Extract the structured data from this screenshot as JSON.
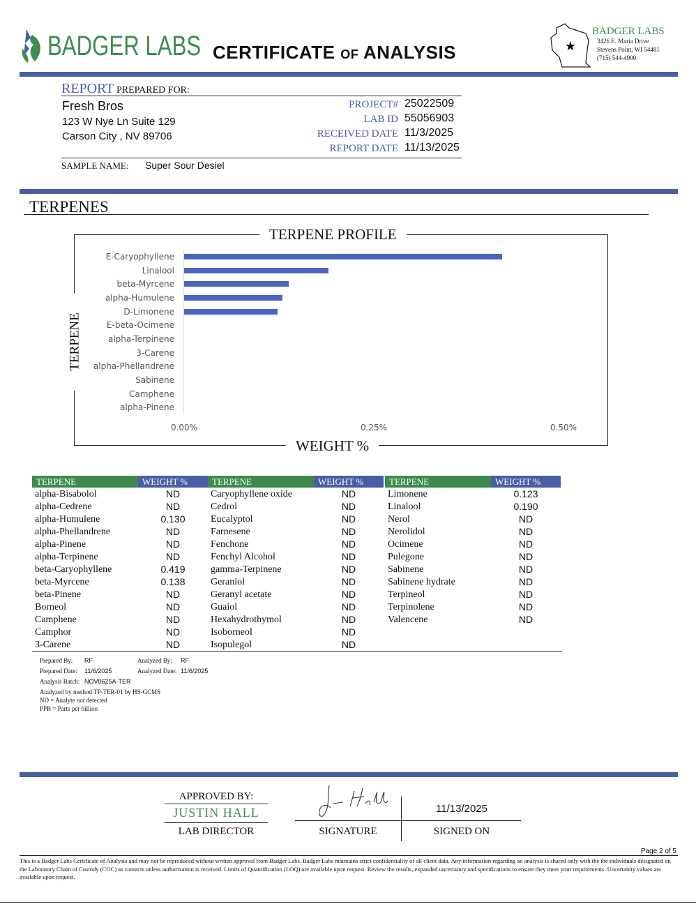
{
  "header": {
    "logo_text": "BADGER LABS",
    "title_main1": "CERTIFICATE ",
    "title_of": "OF",
    "title_main2": " ANALYSIS",
    "lab_name": "BADGER LABS",
    "lab_address1": "3426 E. Maria Drive",
    "lab_address2": "Stevens Point, WI 54481",
    "lab_phone": "(715) 544-4900"
  },
  "client": {
    "report_label": "REPORT",
    "prepared_for_label": " PREPARED FOR:",
    "name": "Fresh Bros",
    "address1": "123 W Nye Ln Suite 129",
    "address2": "Carson City , NV 89706",
    "sample_name_label": "SAMPLE NAME:",
    "sample_name": "Super Sour Desiel"
  },
  "report_info": [
    {
      "label": "PROJECT#",
      "value": "25022509"
    },
    {
      "label": "LAB ID",
      "value": "55056903"
    },
    {
      "label": "RECEIVED DATE",
      "value": "11/3/2025"
    },
    {
      "label": "REPORT DATE",
      "value": "11/13/2025"
    }
  ],
  "section_title": "TERPENES",
  "chart_data": {
    "type": "bar",
    "orientation": "horizontal",
    "title": "TERPENE PROFILE",
    "xlabel": "WEIGHT %",
    "ylabel": "TERPENE",
    "categories": [
      "E-Caryophyllene",
      "Linalool",
      "beta-Myrcene",
      "alpha-Humulene",
      "D-Limonene",
      "E-beta-Ocimene",
      "alpha-Terpinene",
      "3-Carene",
      "alpha-Phellandrene",
      "Sabinene",
      "Camphene",
      "alpha-Pinene"
    ],
    "values": [
      0.419,
      0.19,
      0.138,
      0.13,
      0.123,
      0,
      0,
      0,
      0,
      0,
      0,
      0
    ],
    "xlim": [
      0,
      0.5
    ],
    "xticks": [
      "0.00%",
      "0.25%",
      "0.50%"
    ],
    "xtick_values": [
      0,
      0.25,
      0.5
    ],
    "bar_color": "#4a66c0",
    "grid": false
  },
  "table": {
    "headers": [
      "TERPENE",
      "WEIGHT %",
      "TERPENE",
      "WEIGHT %",
      "TERPENE",
      "WEIGHT %"
    ],
    "columns": [
      [
        [
          "alpha-Bisabolol",
          "ND"
        ],
        [
          "alpha-Cedrene",
          "ND"
        ],
        [
          "alpha-Humulene",
          "0.130"
        ],
        [
          "alpha-Phellandrene",
          "ND"
        ],
        [
          "alpha-Pinene",
          "ND"
        ],
        [
          "alpha-Terpinene",
          "ND"
        ],
        [
          "beta-Caryophyllene",
          "0.419"
        ],
        [
          "beta-Myrcene",
          "0.138"
        ],
        [
          "beta-Pinene",
          "ND"
        ],
        [
          "Borneol",
          "ND"
        ],
        [
          "Camphene",
          "ND"
        ],
        [
          "Camphor",
          "ND"
        ],
        [
          "3-Carene",
          "ND"
        ]
      ],
      [
        [
          "Caryophyllene oxide",
          "ND"
        ],
        [
          "Cedrol",
          "ND"
        ],
        [
          "Eucalyptol",
          "ND"
        ],
        [
          "Farnesene",
          "ND"
        ],
        [
          "Fenchone",
          "ND"
        ],
        [
          "Fenchyl Alcohol",
          "ND"
        ],
        [
          "gamma-Terpinene",
          "ND"
        ],
        [
          "Geraniol",
          "ND"
        ],
        [
          "Geranyl acetate",
          "ND"
        ],
        [
          "Guaiol",
          "ND"
        ],
        [
          "Hexahydrothymol",
          "ND"
        ],
        [
          "Isoborneol",
          "ND"
        ],
        [
          "Isopulegol",
          "ND"
        ]
      ],
      [
        [
          "Limonene",
          "0.123"
        ],
        [
          "Linalool",
          "0.190"
        ],
        [
          "Nerol",
          "ND"
        ],
        [
          "Nerolidol",
          "ND"
        ],
        [
          "Ocimene",
          "ND"
        ],
        [
          "Pulegone",
          "ND"
        ],
        [
          "Sabinene",
          "ND"
        ],
        [
          "Sabinene hydrate",
          "ND"
        ],
        [
          "Terpineol",
          "ND"
        ],
        [
          "Terpinolene",
          "ND"
        ],
        [
          "Valencene",
          "ND"
        ]
      ]
    ]
  },
  "notes": {
    "prepared_by_label": "Prepared By:",
    "prepared_by": "RF",
    "analyzed_by_label": "Analyzed By:",
    "analyzed_by": "RF",
    "prepared_date_label": "Prepared Date:",
    "prepared_date": "11/6/2025",
    "analyzed_date_label": "Analyzed Date:",
    "analyzed_date": "11/6/2025",
    "batch_label": "Analysis Batch:",
    "batch": "NOV0625A-TER",
    "method": "Analyzed by method TP-TER-01 by HS-GCMS",
    "nd": "ND = Analyte not detected",
    "ppb": "PPB = Parts per billion"
  },
  "approval": {
    "approved_by_label": "APPROVED BY:",
    "approver": "JUSTIN HALL",
    "role": "LAB DIRECTOR",
    "signature_label": "SIGNATURE",
    "signed_on_label": "SIGNED ON",
    "signed_date": "11/13/2025",
    "signature_text": "J. Hall"
  },
  "footer": {
    "page": "Page 2 of 5",
    "disclaimer": "This is a Badger Labs Certificate of Analysis and may not be reproduced without written approval from Badger Labs. Badger Labs maintains strict confidentiality of all client data. Any information regarding an analysis is shared only with the the individuals designated on the Laboratory Chain of Custody (COC) as contacts unless authorization is received. Limits of Quantification (LOQ) are available upon request. Review the results, expanded uncertainty and specifications to ensure they meet your requirements. Uncertainty values are available upon request."
  }
}
